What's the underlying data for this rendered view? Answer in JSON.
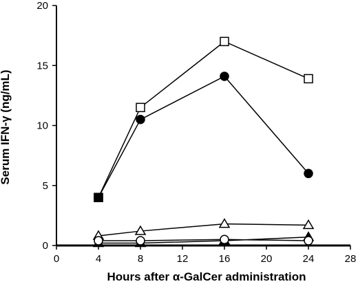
{
  "chart_data": {
    "type": "line",
    "title": "",
    "xlabel": "Hours after α-GalCer administration",
    "ylabel": "Serum IFN-γ (ng/mL)",
    "xlim": [
      0,
      28
    ],
    "ylim": [
      0,
      20
    ],
    "xticks": [
      0,
      4,
      8,
      12,
      16,
      20,
      24,
      28
    ],
    "yticks": [
      0,
      5,
      10,
      15,
      20
    ],
    "grid": false,
    "legend": "none",
    "x": [
      4,
      8,
      16,
      24
    ],
    "series": [
      {
        "marker": "open-square",
        "color": "#000000",
        "values": [
          4.0,
          11.5,
          17.0,
          13.9
        ]
      },
      {
        "marker": "filled-circle",
        "color": "#000000",
        "values": [
          4.0,
          10.5,
          14.1,
          6.0
        ]
      },
      {
        "marker": "open-triangle",
        "color": "#000000",
        "values": [
          0.8,
          1.2,
          1.8,
          1.7
        ]
      },
      {
        "marker": "filled-triangle",
        "color": "#000000",
        "values": [
          0.2,
          0.2,
          0.4,
          0.7
        ]
      },
      {
        "marker": "open-circle",
        "color": "#000000",
        "values": [
          0.4,
          0.4,
          0.5,
          0.4
        ]
      }
    ],
    "annotations": [
      {
        "marker": "filled-square",
        "x": 4,
        "y": 4.0
      }
    ]
  }
}
